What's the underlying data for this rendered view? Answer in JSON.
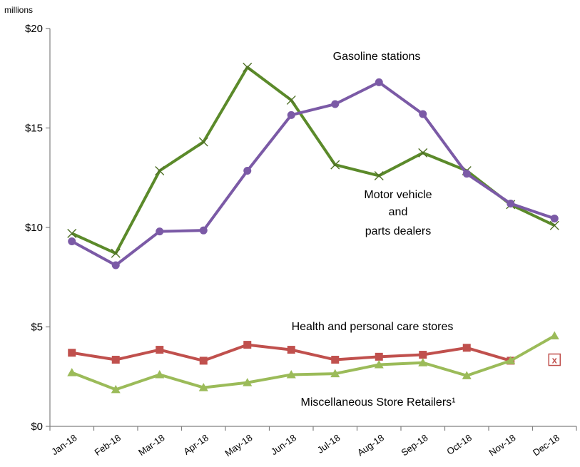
{
  "chart_data": {
    "type": "line",
    "unit_label": "millions",
    "categories": [
      "Jan-18",
      "Feb-18",
      "Mar-18",
      "Apr-18",
      "May-18",
      "Jun-18",
      "Jul-18",
      "Aug-18",
      "Sep-18",
      "Oct-18",
      "Nov-18",
      "Dec-18"
    ],
    "ylim": [
      0,
      20
    ],
    "yticks": [
      {
        "value": 0,
        "label": "$0"
      },
      {
        "value": 5,
        "label": "$5"
      },
      {
        "value": 10,
        "label": "$10"
      },
      {
        "value": 15,
        "label": "$15"
      },
      {
        "value": 20,
        "label": "$20"
      }
    ],
    "grid": false,
    "series": [
      {
        "key": "gasoline",
        "color": "#5b8a2a",
        "marker": "x",
        "values": [
          9.7,
          8.7,
          12.85,
          14.3,
          18.05,
          16.4,
          13.15,
          12.6,
          13.75,
          12.85,
          11.15,
          10.1
        ]
      },
      {
        "key": "motor",
        "color": "#7b5aa6",
        "marker": "circle",
        "values": [
          9.3,
          8.1,
          9.8,
          9.85,
          12.85,
          15.65,
          16.2,
          17.3,
          15.7,
          12.7,
          11.2,
          10.45
        ]
      },
      {
        "key": "health",
        "color": "#c0504d",
        "marker": "square",
        "values": [
          3.7,
          3.35,
          3.85,
          3.3,
          4.1,
          3.85,
          3.35,
          3.5,
          3.6,
          3.95,
          3.3,
          null
        ]
      },
      {
        "key": "misc",
        "color": "#9bbb59",
        "marker": "triangle",
        "values": [
          2.7,
          1.85,
          2.6,
          1.95,
          2.2,
          2.6,
          2.65,
          3.1,
          3.2,
          2.55,
          3.3,
          4.55
        ]
      }
    ],
    "annotations": [
      {
        "key": "gasoline",
        "lines": [
          "Gasoline stations"
        ]
      },
      {
        "key": "motor",
        "lines": [
          "Motor vehicle",
          "and",
          "parts dealers"
        ]
      },
      {
        "key": "health",
        "lines": [
          "Health and personal care stores"
        ]
      },
      {
        "key": "misc",
        "lines": [
          "Miscellaneous Store Retailers¹"
        ]
      }
    ],
    "suppressed_marker": {
      "category": "Dec-18",
      "value": 3.35,
      "text": "x",
      "color": "#c0504d"
    }
  }
}
